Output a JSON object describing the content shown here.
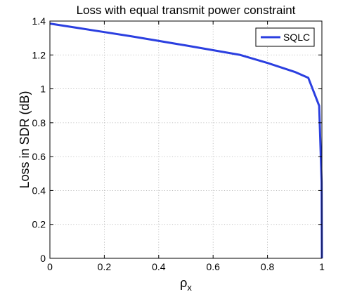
{
  "chart_data": {
    "type": "line",
    "title": "Loss with equal transmit power constraint",
    "xlabel": "ρ",
    "xlabel_subscript": "x",
    "ylabel": "Loss in SDR (dB)",
    "xlim": [
      0,
      1
    ],
    "ylim": [
      0,
      1.4
    ],
    "xticks": [
      0,
      0.2,
      0.4,
      0.6,
      0.8,
      1
    ],
    "xtick_labels": [
      "0",
      "0.2",
      "0.4",
      "0.6",
      "0.8",
      "1"
    ],
    "yticks": [
      0,
      0.2,
      0.4,
      0.6,
      0.8,
      1,
      1.2,
      1.4
    ],
    "ytick_labels": [
      "0",
      "0.2",
      "0.4",
      "0.6",
      "0.8",
      "1",
      "1.2",
      "1.4"
    ],
    "grid": true,
    "legend_position": "top-right",
    "series": [
      {
        "name": "SQLC",
        "color": "#2b3fe0",
        "x": [
          0,
          0.1,
          0.2,
          0.3,
          0.4,
          0.5,
          0.6,
          0.7,
          0.8,
          0.9,
          0.95,
          0.99,
          0.999,
          1.0
        ],
        "y": [
          1.385,
          1.36,
          1.335,
          1.31,
          1.283,
          1.256,
          1.228,
          1.2,
          1.153,
          1.1,
          1.065,
          0.9,
          0.45,
          0.0
        ]
      }
    ]
  }
}
